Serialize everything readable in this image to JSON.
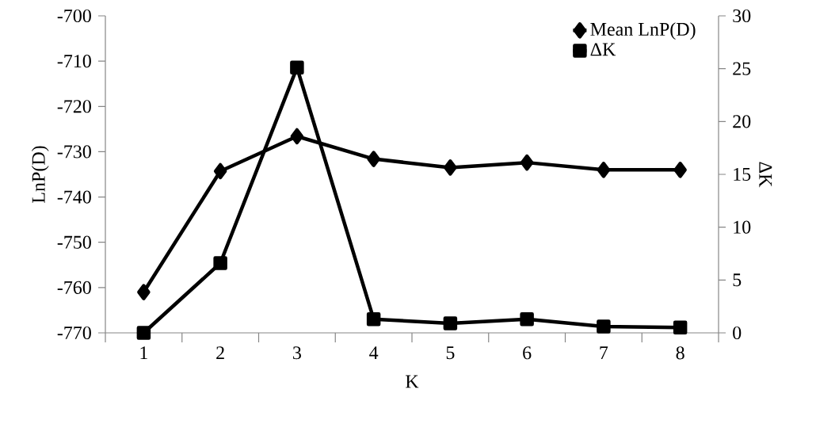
{
  "chart_data": {
    "type": "line",
    "xlabel": "K",
    "ylabel": "LnP(D)",
    "y2label": "ΔK",
    "categories": [
      "1",
      "2",
      "3",
      "4",
      "5",
      "6",
      "7",
      "8"
    ],
    "series": [
      {
        "name": "Mean LnP(D)",
        "color": "#000000",
        "marker": "diamond",
        "values": [
          -761.0,
          -734.3,
          -726.6,
          -731.6,
          -733.5,
          -732.4,
          -734.0,
          -734.0
        ]
      },
      {
        "name": "ΔK",
        "color": "#000000",
        "marker": "square",
        "axis": "y2",
        "values": [
          0,
          6.6,
          25.1,
          1.3,
          0.9,
          1.3,
          0.6,
          0.5
        ]
      }
    ],
    "ylim": [
      -770,
      -700
    ],
    "yticks": [
      -770,
      -760,
      -750,
      -740,
      -730,
      -720,
      -710,
      -700
    ],
    "y2lim": [
      0,
      30
    ],
    "y2ticks": [
      0,
      5,
      10,
      15,
      20,
      25,
      30
    ],
    "legend": "top right",
    "grid": false
  }
}
